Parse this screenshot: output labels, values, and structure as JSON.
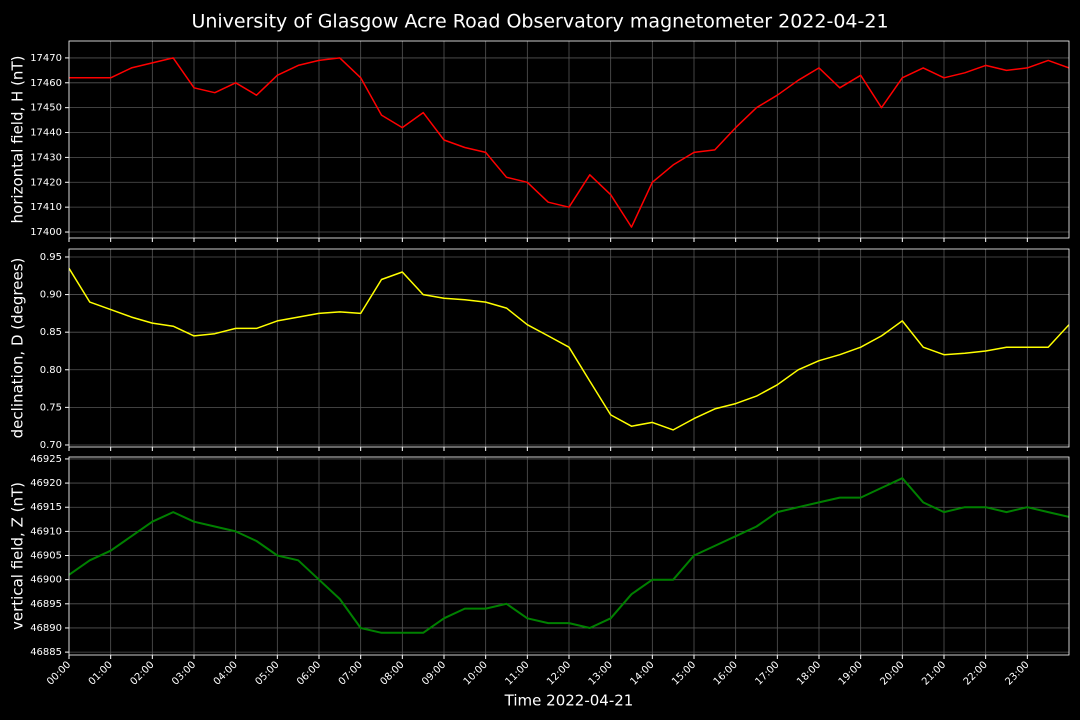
{
  "chart_data": [
    {
      "type": "line",
      "title": "University of Glasgow Acre Road Observatory magnetometer 2022-04-21",
      "ylabel": "horizontal field, H (nT)",
      "color": "#ff0000",
      "x": [
        0,
        0.5,
        1,
        1.5,
        2,
        2.5,
        3,
        3.5,
        4,
        4.5,
        5,
        5.5,
        6,
        6.5,
        7,
        7.5,
        8,
        8.5,
        9,
        9.5,
        10,
        10.5,
        11,
        11.5,
        12,
        12.5,
        13,
        13.5,
        14,
        14.5,
        15,
        15.5,
        16,
        16.5,
        17,
        17.5,
        18,
        18.5,
        19,
        19.5,
        20,
        20.5,
        21,
        21.5,
        22,
        22.5,
        23,
        23.5,
        24
      ],
      "values": [
        17462,
        17462,
        17462,
        17466,
        17468,
        17470,
        17458,
        17456,
        17460,
        17455,
        17463,
        17467,
        17469,
        17470,
        17462,
        17447,
        17442,
        17448,
        17437,
        17434,
        17432,
        17422,
        17420,
        17412,
        17410,
        17423,
        17415,
        17402,
        17420,
        17427,
        17432,
        17433,
        17442,
        17450,
        17455,
        17461,
        17466,
        17458,
        17463,
        17450,
        17462,
        17466,
        17462,
        17464,
        17467,
        17465,
        17466,
        17469,
        17466
      ],
      "ylim": [
        17397.6,
        17476.8
      ],
      "yticks": [
        17400,
        17410,
        17420,
        17430,
        17440,
        17450,
        17460,
        17470
      ],
      "grid": true
    },
    {
      "type": "line",
      "ylabel": "declination, D (degrees)",
      "color": "#ffff00",
      "x": [
        0,
        0.5,
        1,
        1.5,
        2,
        2.5,
        3,
        3.5,
        4,
        4.5,
        5,
        5.5,
        6,
        6.5,
        7,
        7.5,
        8,
        8.5,
        9,
        9.5,
        10,
        10.5,
        11,
        11.5,
        12,
        12.5,
        13,
        13.5,
        14,
        14.5,
        15,
        15.5,
        16,
        16.5,
        17,
        17.5,
        18,
        18.5,
        19,
        19.5,
        20,
        20.5,
        21,
        21.5,
        22,
        22.5,
        23,
        23.5,
        24
      ],
      "values": [
        0.935,
        0.89,
        0.88,
        0.87,
        0.862,
        0.858,
        0.845,
        0.848,
        0.855,
        0.855,
        0.865,
        0.87,
        0.875,
        0.877,
        0.875,
        0.92,
        0.93,
        0.9,
        0.895,
        0.893,
        0.89,
        0.882,
        0.86,
        0.845,
        0.83,
        0.785,
        0.74,
        0.725,
        0.73,
        0.72,
        0.735,
        0.748,
        0.755,
        0.765,
        0.78,
        0.8,
        0.812,
        0.82,
        0.83,
        0.845,
        0.865,
        0.83,
        0.82,
        0.822,
        0.825,
        0.83,
        0.83,
        0.83,
        0.86
      ],
      "ylim": [
        0.6973,
        0.9606
      ],
      "yticks": [
        {
          "value": 0.7,
          "label": "0.70"
        },
        {
          "value": 0.75,
          "label": "0.75"
        },
        {
          "value": 0.8,
          "label": "0.80"
        },
        {
          "value": 0.85,
          "label": "0.85"
        },
        {
          "value": 0.9,
          "label": "0.90"
        },
        {
          "value": 0.95,
          "label": "0.95"
        }
      ],
      "grid": true
    },
    {
      "type": "line",
      "ylabel": "vertical field, Z (nT)",
      "xlabel": "Time 2022-04-21",
      "color": "#008000",
      "x": [
        0,
        0.5,
        1,
        1.5,
        2,
        2.5,
        3,
        3.5,
        4,
        4.5,
        5,
        5.5,
        6,
        6.5,
        7,
        7.5,
        8,
        8.5,
        9,
        9.5,
        10,
        10.5,
        11,
        11.5,
        12,
        12.5,
        13,
        13.5,
        14,
        14.5,
        15,
        15.5,
        16,
        16.5,
        17,
        17.5,
        18,
        18.5,
        19,
        19.5,
        20,
        20.5,
        21,
        21.5,
        22,
        22.5,
        23,
        23.5,
        24
      ],
      "values": [
        46901,
        46904,
        46906,
        46909,
        46912,
        46914,
        46912,
        46911,
        46910,
        46908,
        46905,
        46904,
        46900,
        46896,
        46890,
        46889,
        46889,
        46889,
        46892,
        46894,
        46894,
        46895,
        46892,
        46891,
        46891,
        46890,
        46892,
        46897,
        46900,
        46900,
        46905,
        46907,
        46909,
        46911,
        46914,
        46915,
        46916,
        46917,
        46917,
        46919,
        46921,
        46916,
        46914,
        46915,
        46915,
        46914,
        46915,
        46914,
        46913
      ],
      "ylim": [
        46884.4,
        46925.4
      ],
      "yticks": [
        46885,
        46890,
        46895,
        46900,
        46905,
        46910,
        46915,
        46920,
        46925
      ],
      "grid": true,
      "xlim": [
        0,
        24
      ],
      "xticks": [
        {
          "value": 0,
          "label": "00:00"
        },
        {
          "value": 1,
          "label": "01:00"
        },
        {
          "value": 2,
          "label": "02:00"
        },
        {
          "value": 3,
          "label": "03:00"
        },
        {
          "value": 4,
          "label": "04:00"
        },
        {
          "value": 5,
          "label": "05:00"
        },
        {
          "value": 6,
          "label": "06:00"
        },
        {
          "value": 7,
          "label": "07:00"
        },
        {
          "value": 8,
          "label": "08:00"
        },
        {
          "value": 9,
          "label": "09:00"
        },
        {
          "value": 10,
          "label": "10:00"
        },
        {
          "value": 11,
          "label": "11:00"
        },
        {
          "value": 12,
          "label": "12:00"
        },
        {
          "value": 13,
          "label": "13:00"
        },
        {
          "value": 14,
          "label": "14:00"
        },
        {
          "value": 15,
          "label": "15:00"
        },
        {
          "value": 16,
          "label": "16:00"
        },
        {
          "value": 17,
          "label": "17:00"
        },
        {
          "value": 18,
          "label": "18:00"
        },
        {
          "value": 19,
          "label": "19:00"
        },
        {
          "value": 20,
          "label": "20:00"
        },
        {
          "value": 21,
          "label": "21:00"
        },
        {
          "value": 22,
          "label": "22:00"
        },
        {
          "value": 23,
          "label": "23:00"
        }
      ]
    }
  ]
}
